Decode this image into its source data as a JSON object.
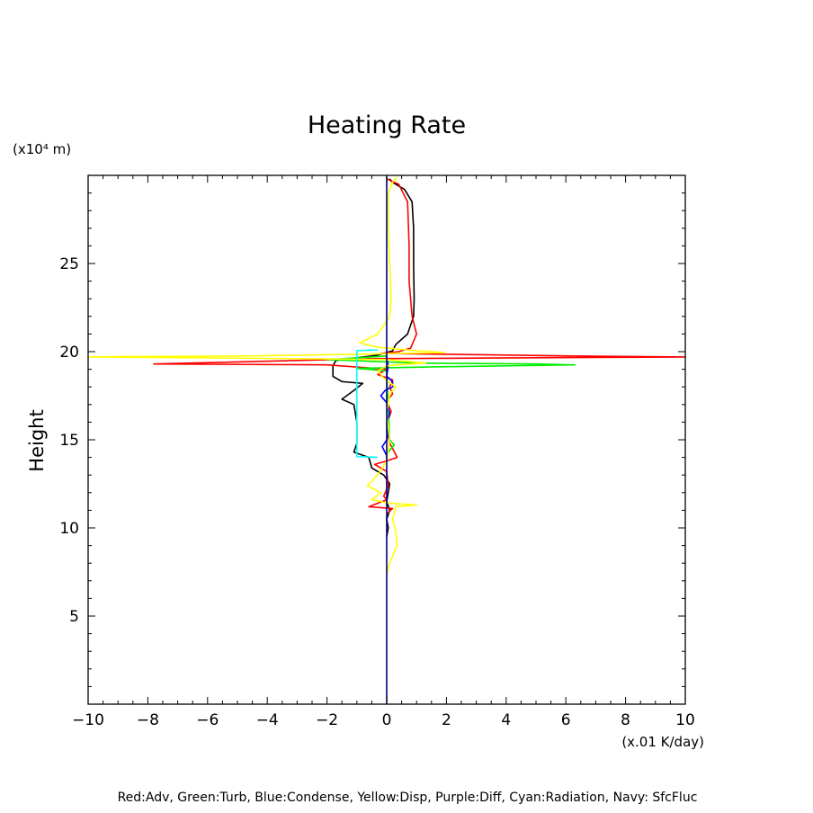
{
  "chart_data": {
    "type": "line",
    "title": "Heating Rate",
    "ylabel": "Height",
    "y_unit_label": "(x10⁴ m)",
    "x_unit_label": "(x.01 K/day)",
    "legend_text": "Red:Adv, Green:Turb, Blue:Condense, Yellow:Disp, Purple:Diff, Cyan:Radiation, Navy: SfcFluc",
    "xlim": [
      -10,
      10
    ],
    "ylim": [
      0,
      30
    ],
    "x_ticks": [
      -10,
      -8,
      -6,
      -4,
      -2,
      0,
      2,
      4,
      6,
      8,
      10
    ],
    "x_tick_labels": [
      "−10",
      "−8",
      "−6",
      "−4",
      "−2",
      "0",
      "2",
      "4",
      "6",
      "8",
      "10"
    ],
    "y_ticks": [
      5,
      10,
      15,
      20,
      25
    ],
    "y_tick_labels": [
      "5",
      "10",
      "15",
      "20",
      "25"
    ],
    "series": [
      {
        "color": "#000000",
        "points": [
          [
            0.1,
            29.8
          ],
          [
            0.2,
            29.6
          ],
          [
            0.6,
            29.2
          ],
          [
            0.85,
            28.5
          ],
          [
            0.9,
            27
          ],
          [
            0.9,
            25
          ],
          [
            0.92,
            23
          ],
          [
            0.9,
            22
          ],
          [
            0.7,
            21
          ],
          [
            0.3,
            20.4
          ],
          [
            0.2,
            20.05
          ],
          [
            -0.3,
            19.8
          ],
          [
            -1.7,
            19.5
          ],
          [
            -1.8,
            19.2
          ],
          [
            -1.8,
            18.6
          ],
          [
            -1.5,
            18.3
          ],
          [
            -0.8,
            18.2
          ],
          [
            -1.1,
            17.8
          ],
          [
            -1.5,
            17.3
          ],
          [
            -1.1,
            17
          ],
          [
            -1.0,
            16
          ],
          [
            -1.0,
            14.8
          ],
          [
            -1.1,
            14.3
          ],
          [
            -0.6,
            14
          ],
          [
            -0.5,
            13.4
          ],
          [
            -0.1,
            13
          ],
          [
            0.1,
            12.5
          ],
          [
            0.05,
            12
          ],
          [
            0.0,
            11.5
          ],
          [
            0.1,
            11
          ],
          [
            0.0,
            10.5
          ],
          [
            0.05,
            10
          ],
          [
            0.0,
            9.5
          ]
        ]
      },
      {
        "color": "#ff0000",
        "points": [
          [
            0.0,
            29.8
          ],
          [
            0.4,
            29.5
          ],
          [
            0.7,
            28.5
          ],
          [
            0.75,
            26
          ],
          [
            0.75,
            24
          ],
          [
            0.85,
            22
          ],
          [
            1.0,
            21
          ],
          [
            0.8,
            20.2
          ],
          [
            0.4,
            20.0
          ],
          [
            -0.2,
            19.9
          ],
          [
            2.0,
            19.85
          ],
          [
            6.5,
            19.75
          ],
          [
            10,
            19.7
          ],
          [
            -0.5,
            19.6
          ],
          [
            -3.0,
            19.5
          ],
          [
            -7.8,
            19.3
          ],
          [
            -2.0,
            19.25
          ],
          [
            0.0,
            19.0
          ],
          [
            -0.3,
            18.7
          ],
          [
            0.2,
            18.4
          ],
          [
            0.1,
            18.0
          ],
          [
            0.2,
            17.6
          ],
          [
            0.0,
            17.2
          ],
          [
            0.15,
            16.6
          ],
          [
            0.0,
            15.9
          ],
          [
            0.05,
            15.3
          ],
          [
            0.1,
            14.8
          ],
          [
            0.2,
            14.5
          ],
          [
            0.35,
            14.0
          ],
          [
            0.0,
            13.8
          ],
          [
            -0.4,
            13.6
          ],
          [
            0.0,
            13.2
          ],
          [
            0.05,
            12.4
          ],
          [
            -0.1,
            11.8
          ],
          [
            0.0,
            11.6
          ],
          [
            -0.6,
            11.2
          ],
          [
            0.2,
            11.1
          ],
          [
            0.0,
            10.8
          ]
        ]
      },
      {
        "color": "#00ee00",
        "points": [
          [
            0.0,
            19.75
          ],
          [
            -1.0,
            19.65
          ],
          [
            -2.0,
            19.55
          ],
          [
            -0.5,
            19.45
          ],
          [
            1.0,
            19.35
          ],
          [
            5.0,
            19.3
          ],
          [
            6.3,
            19.25
          ],
          [
            2.0,
            19.15
          ],
          [
            -1.0,
            19.05
          ],
          [
            0.0,
            18.9
          ],
          [
            0.0,
            18.7
          ],
          [
            0.1,
            15.0
          ],
          [
            0.25,
            14.7
          ],
          [
            0.1,
            14.4
          ],
          [
            0.0,
            14.2
          ]
        ]
      },
      {
        "color": "#0000ff",
        "points": [
          [
            0.0,
            19.8
          ],
          [
            0.0,
            19.6
          ],
          [
            0.05,
            19.2
          ],
          [
            0.0,
            18.6
          ],
          [
            0.2,
            18.3
          ],
          [
            0.2,
            18.0
          ],
          [
            -0.05,
            17.8
          ],
          [
            -0.2,
            17.5
          ],
          [
            0.0,
            17.1
          ],
          [
            0.1,
            16.5
          ],
          [
            0.0,
            16.0
          ],
          [
            0.05,
            15.3
          ],
          [
            0.0,
            15.0
          ],
          [
            -0.15,
            14.6
          ],
          [
            0.0,
            14.1
          ],
          [
            0.0,
            13.9
          ]
        ]
      },
      {
        "color": "#ffff00",
        "points": [
          [
            0.35,
            29.9
          ],
          [
            0.2,
            29.6
          ],
          [
            0.05,
            29
          ],
          [
            0.05,
            27
          ],
          [
            0.1,
            25
          ],
          [
            0.15,
            23
          ],
          [
            0.1,
            22
          ],
          [
            -0.3,
            21
          ],
          [
            -0.9,
            20.5
          ],
          [
            -0.3,
            20.25
          ],
          [
            1.0,
            20.05
          ],
          [
            1.95,
            19.95
          ],
          [
            -1.0,
            19.85
          ],
          [
            -5.0,
            19.75
          ],
          [
            -9.0,
            19.72
          ],
          [
            -10,
            19.7
          ],
          [
            -6.0,
            19.65
          ],
          [
            0.0,
            19.55
          ],
          [
            1.3,
            19.35
          ],
          [
            0.0,
            19.2
          ],
          [
            -0.3,
            18.9
          ],
          [
            -0.1,
            18.5
          ],
          [
            0.3,
            18.0
          ],
          [
            0.1,
            17.6
          ],
          [
            0.0,
            16.5
          ],
          [
            0.1,
            15.0
          ],
          [
            0.0,
            13.8
          ],
          [
            -0.3,
            13.0
          ],
          [
            -0.65,
            12.4
          ],
          [
            -0.2,
            12.0
          ],
          [
            -0.5,
            11.6
          ],
          [
            0.1,
            11.4
          ],
          [
            1.0,
            11.3
          ],
          [
            0.3,
            11.2
          ],
          [
            0.2,
            10.5
          ],
          [
            0.3,
            9.8
          ],
          [
            0.35,
            9.0
          ],
          [
            0.1,
            8.0
          ],
          [
            0.0,
            7.4
          ]
        ]
      },
      {
        "color": "#00ffff",
        "points": [
          [
            -0.3,
            20.1
          ],
          [
            -1.0,
            20.05
          ],
          [
            -1.0,
            19.5
          ],
          [
            -1.0,
            17
          ],
          [
            -1.0,
            14.05
          ],
          [
            -0.3,
            14.0
          ]
        ]
      },
      {
        "color": "#000080",
        "points": [
          [
            0.0,
            30
          ],
          [
            0.0,
            0
          ]
        ]
      }
    ]
  }
}
